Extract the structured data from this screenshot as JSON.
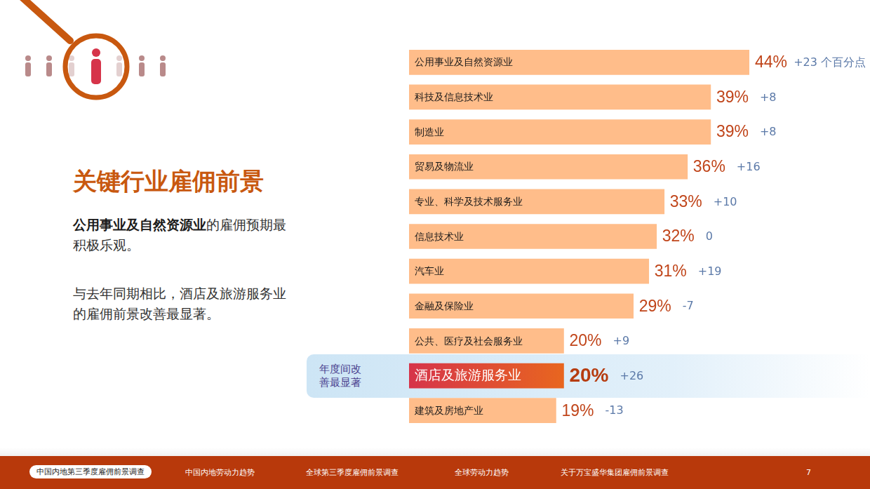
{
  "chart_data": {
    "type": "bar",
    "orientation": "horizontal",
    "title": "关键行业雇佣前景",
    "categories": [
      "公用事业及自然资源业",
      "科技及信息技术业",
      "制造业",
      "贸易及物流业",
      "专业、科学及技术服务业",
      "信息技术业",
      "汽车业",
      "金融及保险业",
      "公共、医疗及社会服务业",
      "酒店及旅游服务业",
      "建筑及房地产业"
    ],
    "values": [
      44,
      39,
      39,
      36,
      33,
      32,
      31,
      29,
      20,
      20,
      19
    ],
    "value_labels": [
      "44%",
      "39%",
      "39%",
      "36%",
      "33%",
      "32%",
      "31%",
      "29%",
      "20%",
      "20%",
      "19%"
    ],
    "changes": [
      23,
      8,
      8,
      16,
      10,
      0,
      19,
      -7,
      9,
      26,
      -13
    ],
    "change_labels": [
      "+23 个百分点",
      "+8",
      "+8",
      "+16",
      "+10",
      "0",
      "+19",
      "-7",
      "+9",
      "+26",
      "-13"
    ],
    "colors": [
      "#ffbd8a",
      "#ffbd8a",
      "#ffbd8a",
      "#ffbd8a",
      "#ffbd8a",
      "#ffbd8a",
      "#ffbd8a",
      "#ffbd8a",
      "#ffbd8a",
      "#d6344a",
      "#ffbd8a"
    ],
    "annotation": {
      "text": "年度间改善最显著",
      "category": "酒店及旅游服务业"
    },
    "xlim": [
      0,
      44
    ],
    "data_labels": true,
    "tick_labels": false,
    "grid": false
  },
  "text": {
    "paragraphs": [
      [
        {
          "text": "公用事业及自然资源业",
          "bold": true
        },
        {
          "text": "的雇佣预期最积极乐观。",
          "bold": false
        }
      ],
      [
        {
          "text": "与去年同期相比，酒店及旅游服务业的雇佣前景改善最显著。",
          "bold": false
        }
      ]
    ]
  },
  "footer": {
    "items": [
      "中国内地第三季度雇佣前景调查",
      "中国内地劳动力趋势",
      "全球第三季度雇佣前景调查",
      "全球劳动力趋势",
      "关于万宝盛华集团雇佣前景调查"
    ],
    "active": "中国内地第三季度雇佣前景调查",
    "page": 7
  }
}
